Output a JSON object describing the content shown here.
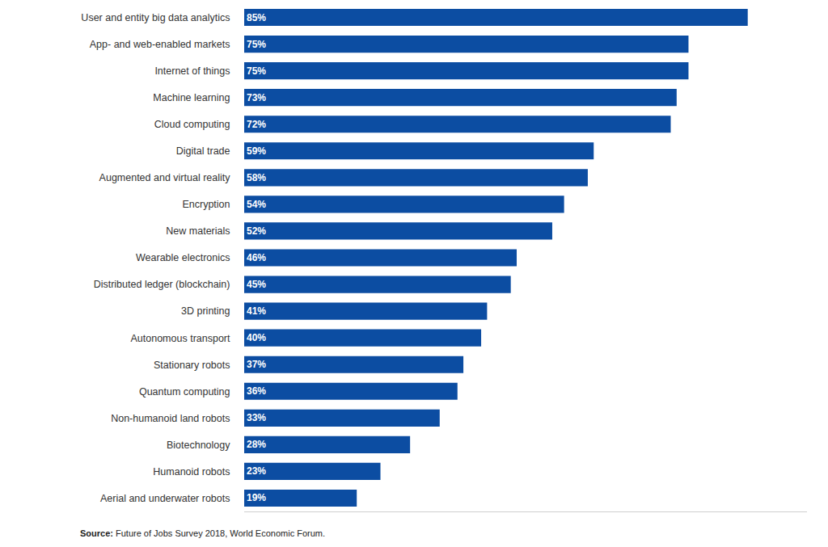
{
  "chart_data": {
    "type": "bar",
    "orientation": "horizontal",
    "categories": [
      "User and entity big data analytics",
      "App- and web-enabled markets",
      "Internet of things",
      "Machine learning",
      "Cloud computing",
      "Digital trade",
      "Augmented and virtual reality",
      "Encryption",
      "New materials",
      "Wearable electronics",
      "Distributed ledger (blockchain)",
      "3D printing",
      "Autonomous transport",
      "Stationary robots",
      "Quantum computing",
      "Non-humanoid land robots",
      "Biotechnology",
      "Humanoid robots",
      "Aerial and underwater robots"
    ],
    "values": [
      85,
      75,
      75,
      73,
      72,
      59,
      58,
      54,
      52,
      46,
      45,
      41,
      40,
      37,
      36,
      33,
      28,
      23,
      19
    ],
    "value_labels": [
      "85%",
      "75%",
      "75%",
      "73%",
      "72%",
      "59%",
      "58%",
      "54%",
      "52%",
      "46%",
      "45%",
      "41%",
      "40%",
      "37%",
      "36%",
      "33%",
      "28%",
      "23%",
      "19%"
    ],
    "data_labels": true,
    "color": "#0c4da2",
    "xlim": [
      0,
      95
    ],
    "grid": false,
    "tick_labels": "y",
    "note": {
      "label": "Source:",
      "text": "Future of Jobs Survey 2018, World Economic Forum."
    }
  }
}
